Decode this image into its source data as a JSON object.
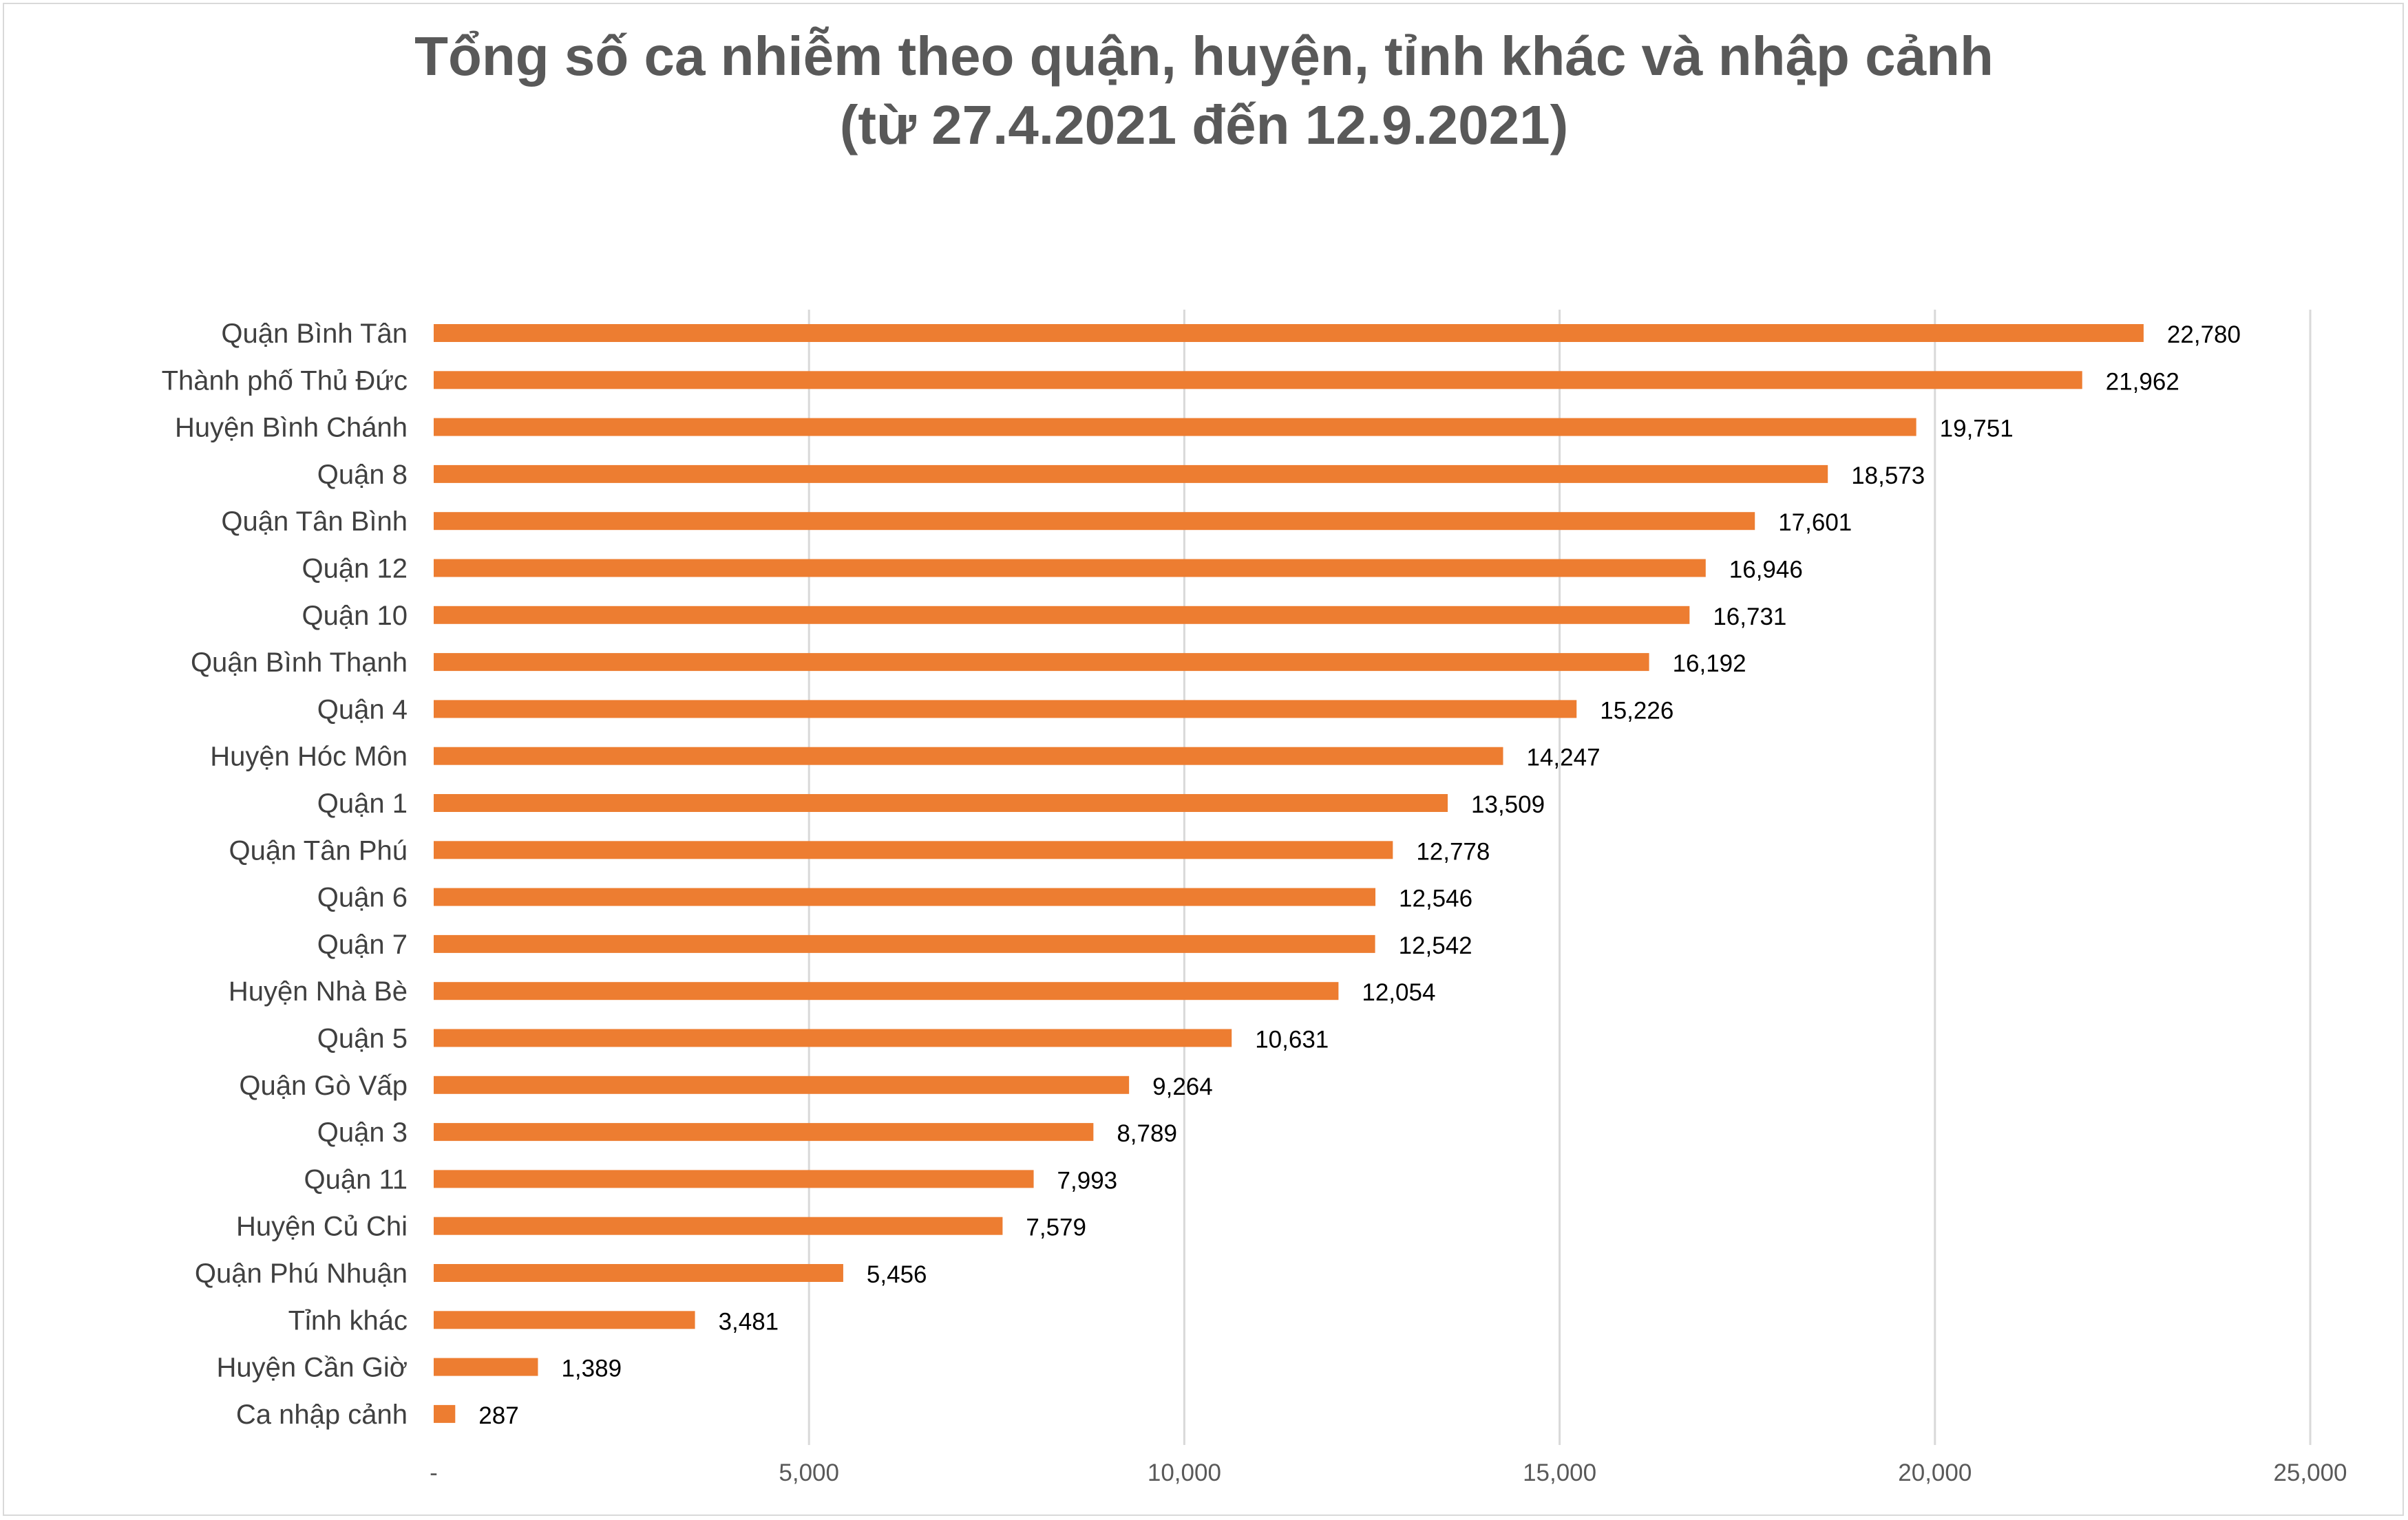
{
  "chart_data": {
    "type": "bar",
    "orientation": "horizontal",
    "title": "Tổng số ca nhiễm theo quận, huyện, tỉnh khác và nhập cảnh",
    "subtitle": "(từ 27.4.2021 đến 12.9.2021)",
    "categories": [
      "Quận Bình Tân",
      "Thành phố Thủ Đức",
      "Huyện Bình Chánh",
      "Quận 8",
      "Quận Tân Bình",
      "Quận 12",
      "Quận 10",
      "Quận Bình Thạnh",
      "Quận 4",
      "Huyện Hóc Môn",
      "Quận 1",
      "Quận Tân Phú",
      "Quận 6",
      "Quận 7",
      "Huyện Nhà Bè",
      "Quận 5",
      "Quận Gò Vấp",
      "Quận 3",
      "Quận 11",
      "Huyện Củ Chi",
      "Quận Phú Nhuận",
      "Tỉnh khác",
      "Huyện Cần Giờ",
      "Ca nhập cảnh"
    ],
    "values": [
      22780,
      21962,
      19751,
      18573,
      17601,
      16946,
      16731,
      16192,
      15226,
      14247,
      13509,
      12778,
      12546,
      12542,
      12054,
      10631,
      9264,
      8789,
      7993,
      7579,
      5456,
      3481,
      1389,
      287
    ],
    "value_labels": [
      "22,780",
      "21,962",
      "19,751",
      "18,573",
      "17,601",
      "16,946",
      "16,731",
      "16,192",
      "15,226",
      "14,247",
      "13,509",
      "12,778",
      "12,546",
      "12,542",
      "12,054",
      "10,631",
      "9,264",
      "8,789",
      "7,993",
      "7,579",
      "5,456",
      "3,481",
      "1,389",
      "287"
    ],
    "xlim": [
      0,
      25000
    ],
    "x_ticks": [
      0,
      5000,
      10000,
      15000,
      20000,
      25000
    ],
    "x_tick_labels": [
      "-",
      "5,000",
      "10,000",
      "15,000",
      "20,000",
      "25,000"
    ],
    "grid": "vertical",
    "legend": "none",
    "bar_color": "#ED7D31"
  }
}
